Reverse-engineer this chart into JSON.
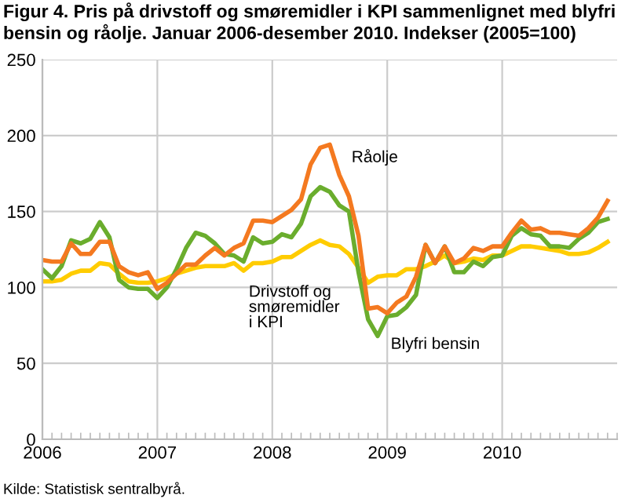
{
  "chart_data": {
    "type": "line",
    "title": "Figur 4. Pris på drivstoff og smøremidler i KPI sammenlignet med blyfri bensin og råolje. Januar 2006-desember 2010. Indekser (2005=100)",
    "annotations": [
      "Kilde: Statistisk sentralbyrå."
    ],
    "x": [
      "2006-01",
      "2006-02",
      "2006-03",
      "2006-04",
      "2006-05",
      "2006-06",
      "2006-07",
      "2006-08",
      "2006-09",
      "2006-10",
      "2006-11",
      "2006-12",
      "2007-01",
      "2007-02",
      "2007-03",
      "2007-04",
      "2007-05",
      "2007-06",
      "2007-07",
      "2007-08",
      "2007-09",
      "2007-10",
      "2007-11",
      "2007-12",
      "2008-01",
      "2008-02",
      "2008-03",
      "2008-04",
      "2008-05",
      "2008-06",
      "2008-07",
      "2008-08",
      "2008-09",
      "2008-10",
      "2008-11",
      "2008-12",
      "2009-01",
      "2009-02",
      "2009-03",
      "2009-04",
      "2009-05",
      "2009-06",
      "2009-07",
      "2009-08",
      "2009-09",
      "2009-10",
      "2009-11",
      "2009-12",
      "2010-01",
      "2010-02",
      "2010-03",
      "2010-04",
      "2010-05",
      "2010-06",
      "2010-07",
      "2010-08",
      "2010-09",
      "2010-10",
      "2010-11",
      "2010-12"
    ],
    "series": [
      {
        "name": "Drivstoff og\nsmøremidler\ni KPI",
        "color": "#ffcc00",
        "values": [
          104,
          104,
          105,
          109,
          111,
          111,
          116,
          115,
          109,
          104,
          103,
          103,
          104,
          106,
          109,
          111,
          113,
          114,
          114,
          114,
          116,
          111,
          116,
          116,
          117,
          120,
          120,
          124,
          128,
          131,
          128,
          127,
          122,
          113,
          103,
          107,
          108,
          108,
          112,
          112,
          114,
          117,
          121,
          116,
          117,
          119,
          118,
          121,
          121,
          124,
          127,
          127,
          126,
          125,
          124,
          122,
          122,
          123,
          126,
          130
        ]
      },
      {
        "name": "Blyfri bensin",
        "color": "#6aad2d",
        "values": [
          112,
          106,
          114,
          131,
          129,
          132,
          143,
          133,
          105,
          100,
          99,
          99,
          93,
          100,
          112,
          126,
          136,
          134,
          129,
          122,
          121,
          117,
          133,
          129,
          130,
          135,
          133,
          142,
          160,
          166,
          163,
          154,
          150,
          110,
          79,
          68,
          81,
          82,
          87,
          95,
          128,
          116,
          127,
          110,
          110,
          117,
          114,
          120,
          121,
          134,
          139,
          135,
          134,
          127,
          127,
          126,
          132,
          136,
          143,
          145
        ]
      },
      {
        "name": "Råolje",
        "color": "#f47920",
        "values": [
          118,
          117,
          117,
          129,
          122,
          122,
          130,
          130,
          114,
          110,
          108,
          110,
          99,
          103,
          109,
          115,
          115,
          121,
          126,
          121,
          126,
          129,
          144,
          144,
          143,
          147,
          151,
          158,
          181,
          192,
          194,
          174,
          160,
          134,
          86,
          87,
          83,
          90,
          94,
          107,
          128,
          116,
          127,
          116,
          119,
          126,
          124,
          127,
          127,
          136,
          144,
          138,
          139,
          136,
          136,
          135,
          134,
          139,
          146,
          157
        ]
      }
    ],
    "xlim": [
      "2006-01",
      "2011-01"
    ],
    "xticks": [
      {
        "value": "2006-01",
        "label": "2006"
      },
      {
        "value": "2007-01",
        "label": "2007"
      },
      {
        "value": "2008-01",
        "label": "2008"
      },
      {
        "value": "2009-01",
        "label": "2009"
      },
      {
        "value": "2010-01",
        "label": "2010"
      }
    ],
    "ylim": [
      0,
      250
    ],
    "yticks": [
      0,
      50,
      100,
      150,
      200,
      250
    ],
    "grid": true,
    "line_style": "solid",
    "marker": "none"
  }
}
